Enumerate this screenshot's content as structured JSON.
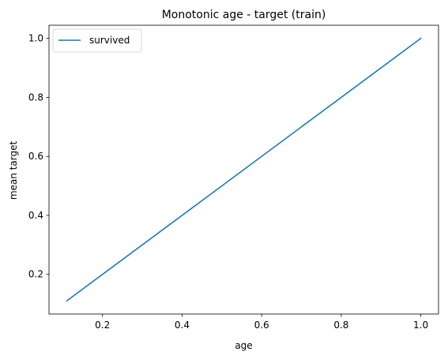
{
  "chart_data": {
    "type": "line",
    "title": "Monotonic age - target (train)",
    "xlabel": "age",
    "ylabel": "mean target",
    "xlim": [
      0.0655,
      1.0445
    ],
    "ylim": [
      0.0655,
      1.0445
    ],
    "xticks": [
      0.2,
      0.4,
      0.6,
      0.8,
      1.0
    ],
    "yticks": [
      0.2,
      0.4,
      0.6,
      0.8,
      1.0
    ],
    "xtick_labels": [
      "0.2",
      "0.4",
      "0.6",
      "0.8",
      "1.0"
    ],
    "ytick_labels": [
      "0.2",
      "0.4",
      "0.6",
      "0.8",
      "1.0"
    ],
    "grid": false,
    "legend": {
      "position": "upper-left"
    },
    "series": [
      {
        "name": "survived",
        "color": "#1f77b4",
        "x": [
          0.11,
          1.0
        ],
        "y": [
          0.11,
          1.0
        ]
      }
    ]
  }
}
